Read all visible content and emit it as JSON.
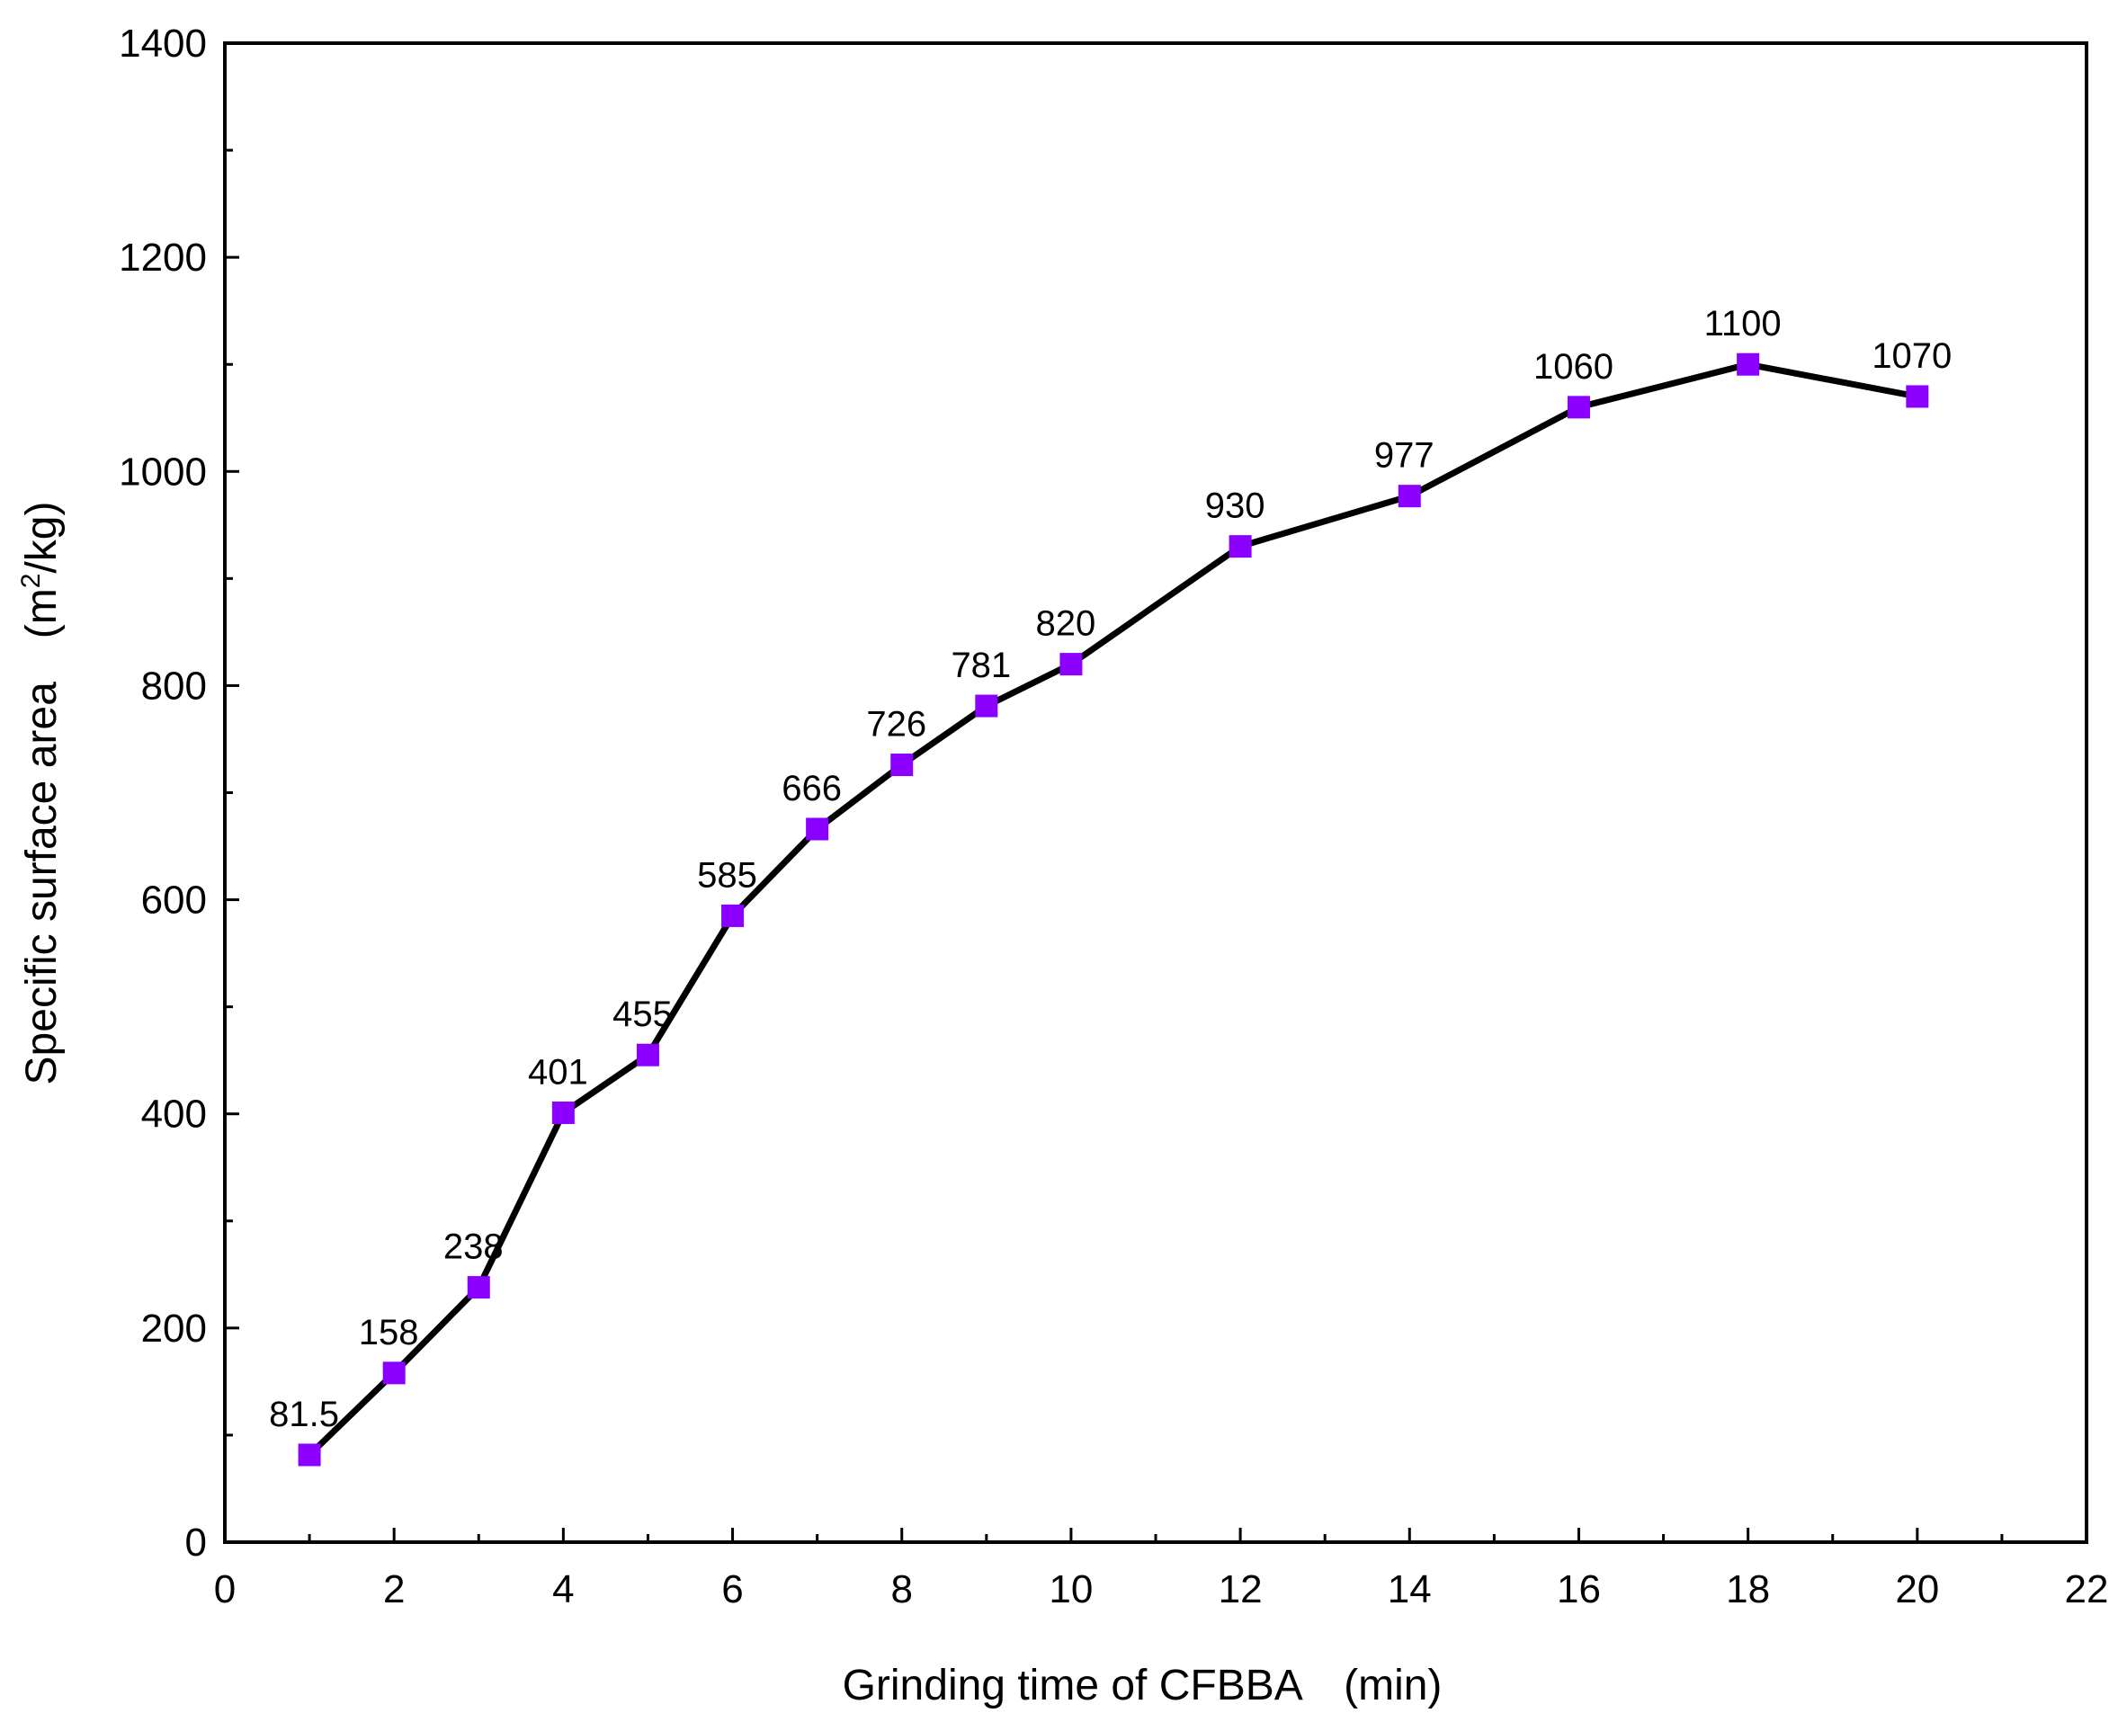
{
  "chart_data": {
    "type": "line",
    "title": "",
    "xlabel": "Grinding time of CFBBA　(min)",
    "ylabel_main": "Specific surface area　(m",
    "ylabel_sup": "2",
    "ylabel_end": "/kg)",
    "xlim": [
      0,
      22
    ],
    "ylim": [
      0,
      1400
    ],
    "xticks": [
      0,
      2,
      4,
      6,
      8,
      10,
      12,
      14,
      16,
      18,
      20,
      22
    ],
    "yticks": [
      0,
      200,
      400,
      600,
      800,
      1000,
      1200,
      1400
    ],
    "grid": false,
    "series": [
      {
        "name": "Specific surface area",
        "marker": "square",
        "marker_color": "#8B00FF",
        "line_color": "#000000",
        "x": [
          1,
          2,
          3,
          4,
          5,
          6,
          7,
          8,
          9,
          10,
          12,
          14,
          16,
          18,
          20
        ],
        "y": [
          81.5,
          158,
          238,
          401,
          455,
          585,
          666,
          726,
          781,
          820,
          930,
          977,
          1060,
          1100,
          1070
        ],
        "labels": [
          "81.5",
          "158",
          "238",
          "401",
          "455",
          "585",
          "666",
          "726",
          "781",
          "820",
          "930",
          "977",
          "1060",
          "1100",
          "1070"
        ]
      }
    ]
  }
}
